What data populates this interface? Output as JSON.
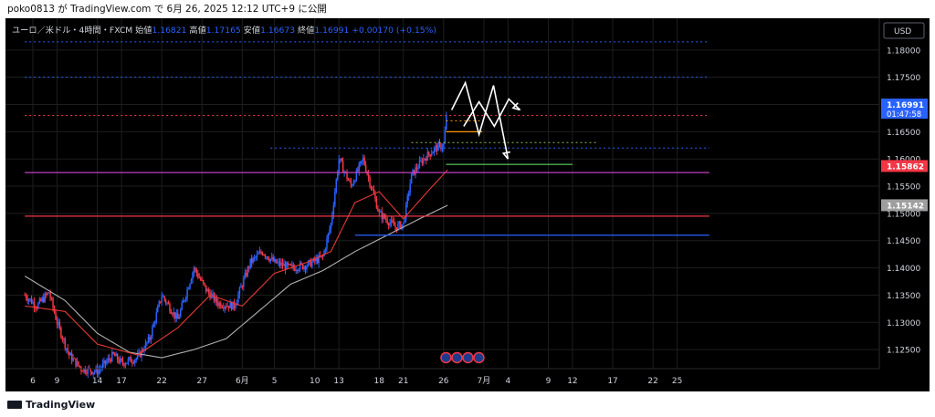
{
  "header": {
    "publish_line": "poko0813 が TradingView.com で 6月 26, 2025 12:12 UTC+9 に公開"
  },
  "footer": {
    "brand": "TradingView"
  },
  "colors": {
    "background": "#000000",
    "up_candle": "#2962ff",
    "down_candle": "#f23645",
    "ma_fast": "#e53935",
    "ma_slow": "#b0b0b0",
    "grid": "#1e1e1e"
  },
  "chart_data": {
    "type": "candlestick",
    "symbol_line": {
      "name": "ユーロ／米ドル・4時間・FXCM",
      "open_label": "始値",
      "open": "1.16821",
      "high_label": "高値",
      "high": "1.17165",
      "low_label": "安値",
      "low": "1.16673",
      "close_label": "終値",
      "close": "1.16991",
      "change": "+0.00170 (+0.15%)"
    },
    "currency": "USD",
    "y_ticks": [
      "1.18000",
      "1.17500",
      "1.17000",
      "1.16500",
      "1.16000",
      "1.15500",
      "1.15000",
      "1.14500",
      "1.14000",
      "1.13500",
      "1.13000",
      "1.12500"
    ],
    "ylim": [
      1.1215,
      1.185
    ],
    "x_ticks": [
      {
        "label": "6",
        "day": 0
      },
      {
        "label": "9",
        "day": 3
      },
      {
        "label": "14",
        "day": 8
      },
      {
        "label": "17",
        "day": 11
      },
      {
        "label": "22",
        "day": 16
      },
      {
        "label": "27",
        "day": 21
      },
      {
        "label": "6月",
        "day": 26
      },
      {
        "label": "5",
        "day": 30
      },
      {
        "label": "10",
        "day": 35
      },
      {
        "label": "13",
        "day": 38
      },
      {
        "label": "18",
        "day": 43
      },
      {
        "label": "21",
        "day": 46
      },
      {
        "label": "26",
        "day": 51
      },
      {
        "label": "7月",
        "day": 56
      },
      {
        "label": "4",
        "day": 59
      },
      {
        "label": "9",
        "day": 64
      },
      {
        "label": "12",
        "day": 67
      },
      {
        "label": "17",
        "day": 72
      },
      {
        "label": "22",
        "day": 77
      },
      {
        "label": "25",
        "day": 80
      }
    ],
    "price_labels": [
      {
        "value": 1.16991,
        "text": "1.16991",
        "sub": "01:47:58",
        "color": "#2962ff"
      },
      {
        "value": 1.15862,
        "text": "1.15862",
        "color": "#f23645"
      },
      {
        "value": 1.15142,
        "text": "1.15142",
        "color": "#9e9e9e"
      }
    ],
    "horizontal_lines": [
      {
        "value": 1.1815,
        "color": "#2962ff",
        "style": "dotted",
        "from_day": -1,
        "to_day": 84
      },
      {
        "value": 1.175,
        "color": "#2962ff",
        "style": "dotted",
        "from_day": -1,
        "to_day": 84
      },
      {
        "value": 1.168,
        "color": "#f23645",
        "style": "dotted",
        "from_day": -1,
        "to_day": 84
      },
      {
        "value": 1.162,
        "color": "#2962ff",
        "style": "dotted",
        "from_day": 29.5,
        "to_day": 84
      },
      {
        "value": 1.1575,
        "color": "#c040c0",
        "style": "solid",
        "from_day": -1,
        "to_day": 84
      },
      {
        "value": 1.1495,
        "color": "#f23645",
        "style": "solid",
        "from_day": -1,
        "to_day": 84
      },
      {
        "value": 1.146,
        "color": "#2962ff",
        "style": "solid",
        "from_day": 40,
        "to_day": 84
      },
      {
        "value": 1.165,
        "color": "#ff9800",
        "style": "solid",
        "from_day": 51.3,
        "to_day": 55.8
      },
      {
        "value": 1.163,
        "color": "#8bc34a",
        "style": "dotted",
        "from_day": 47,
        "to_day": 70
      },
      {
        "value": 1.159,
        "color": "#4caf50",
        "style": "solid",
        "from_day": 51.3,
        "to_day": 67
      },
      {
        "value": 1.167,
        "color": "#ff9800",
        "style": "dotted",
        "from_day": 51.3,
        "to_day": 55.5
      }
    ],
    "forecast_path_days": [
      52.0,
      53.7,
      55.4,
      57.2,
      59.0
    ],
    "forecast_path_values": [
      1.169,
      1.174,
      1.1645,
      1.1735,
      1.16
    ],
    "forecast_path2_days": [
      53.5,
      55.4,
      57.3,
      59.1,
      60.5
    ],
    "forecast_path2_values": [
      1.166,
      1.1705,
      1.166,
      1.171,
      1.169
    ],
    "event_markers": 4,
    "candle_keypoints_day": [
      -1,
      0.5,
      2,
      3,
      4.5,
      6,
      8,
      10,
      11,
      13,
      14.5,
      16,
      18,
      20,
      21.5,
      23,
      25,
      27,
      28.5,
      30,
      32,
      34,
      36,
      37,
      38,
      39.5,
      41,
      43,
      45,
      46,
      47,
      48.5,
      50,
      51,
      51.5
    ],
    "candle_keypoints_val": [
      1.135,
      1.133,
      1.1355,
      1.13,
      1.124,
      1.1215,
      1.121,
      1.124,
      1.1225,
      1.1235,
      1.127,
      1.135,
      1.1305,
      1.14,
      1.136,
      1.1335,
      1.133,
      1.141,
      1.143,
      1.141,
      1.14,
      1.1405,
      1.142,
      1.148,
      1.16,
      1.155,
      1.16,
      1.15,
      1.1475,
      1.148,
      1.157,
      1.16,
      1.162,
      1.1625,
      1.1699
    ],
    "ma_fast_days": [
      -1,
      4,
      8,
      13,
      18,
      22,
      26,
      30,
      34,
      37,
      40,
      43,
      46,
      49,
      51.5
    ],
    "ma_fast_vals": [
      1.133,
      1.132,
      1.126,
      1.124,
      1.129,
      1.135,
      1.133,
      1.139,
      1.141,
      1.143,
      1.152,
      1.154,
      1.149,
      1.154,
      1.158
    ],
    "ma_slow_days": [
      -1,
      4,
      8,
      12,
      16,
      20,
      24,
      28,
      32,
      36,
      40,
      44,
      48,
      51.5
    ],
    "ma_slow_vals": [
      1.1385,
      1.134,
      1.128,
      1.1245,
      1.1235,
      1.125,
      1.127,
      1.132,
      1.137,
      1.1395,
      1.143,
      1.146,
      1.149,
      1.1515
    ]
  }
}
